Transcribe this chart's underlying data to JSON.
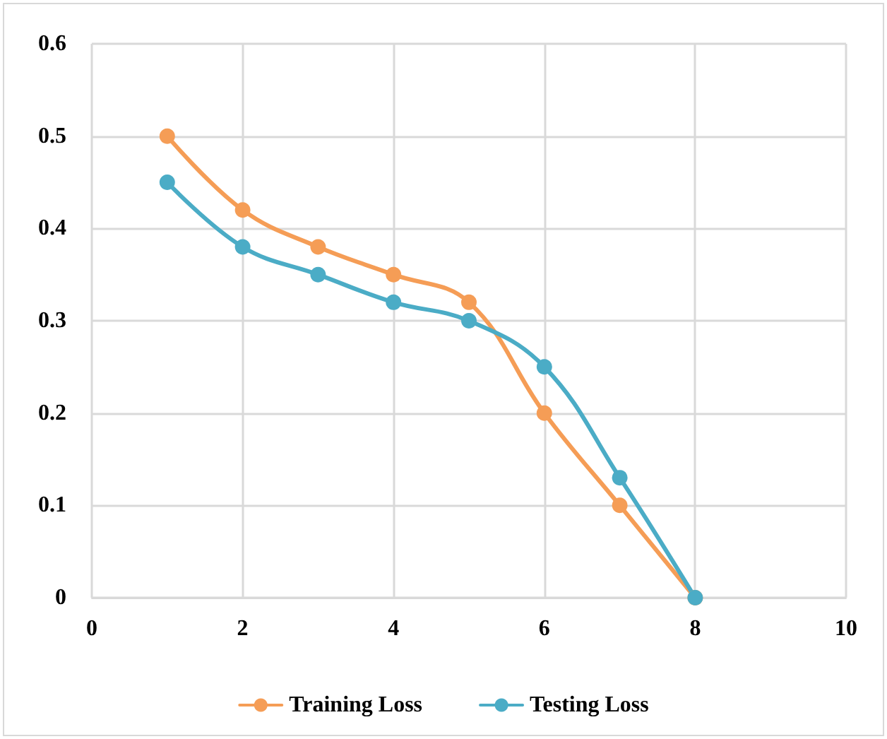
{
  "chart_data": {
    "type": "line",
    "x": [
      1,
      2,
      3,
      4,
      5,
      6,
      7,
      8
    ],
    "series": [
      {
        "name": "Training Loss",
        "color": "#f59d56",
        "values": [
          0.5,
          0.42,
          0.38,
          0.35,
          0.32,
          0.2,
          0.1,
          0
        ]
      },
      {
        "name": "Testing Loss",
        "color": "#4bacc6",
        "values": [
          0.45,
          0.38,
          0.35,
          0.32,
          0.3,
          0.25,
          0.13,
          0
        ]
      }
    ],
    "xlim": [
      0,
      10
    ],
    "xticks": [
      0,
      2,
      4,
      6,
      8,
      10
    ],
    "ylim": [
      0,
      0.6
    ],
    "yticks": [
      0,
      0.1,
      0.2,
      0.3,
      0.4,
      0.5,
      0.6
    ],
    "grid": true,
    "legend": "bottom",
    "marker": "circle",
    "line_style": "solid"
  }
}
